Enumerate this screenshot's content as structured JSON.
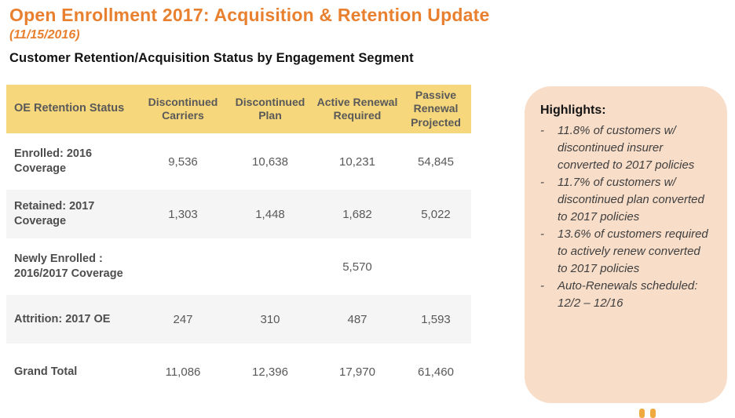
{
  "slide": {
    "title": "Open Enrollment 2017: Acquisition & Retention Update",
    "date": "(11/15/2016)",
    "section_heading": "Customer Retention/Acquisition Status by Engagement Segment"
  },
  "table": {
    "columns": [
      "OE Retention Status",
      "Discontinued Carriers",
      "Discontinued Plan",
      "Active Renewal Required",
      "Passive Renewal Projected"
    ],
    "rows": [
      {
        "label": "Enrolled: 2016 Coverage",
        "values": [
          "9,536",
          "10,638",
          "10,231",
          "54,845"
        ]
      },
      {
        "label": "Retained: 2017 Coverage",
        "values": [
          "1,303",
          "1,448",
          "1,682",
          "5,022"
        ]
      },
      {
        "label": "Newly Enrolled : 2016/2017 Coverage",
        "values": [
          "",
          "",
          "5,570",
          ""
        ]
      },
      {
        "label": "Attrition: 2017 OE",
        "values": [
          "247",
          "310",
          "487",
          "1,593"
        ]
      },
      {
        "label": "Grand Total",
        "values": [
          "11,086",
          "12,396",
          "17,970",
          "61,460"
        ]
      }
    ]
  },
  "highlights": {
    "heading": "Highlights:",
    "bullet_char": "-",
    "items": [
      "11.8% of customers w/ discontinued insurer converted to 2017 policies",
      "11.7% of customers w/ discontinued plan converted to 2017 policies",
      "13.6% of customers required to actively renew converted to 2017 policies",
      "Auto-Renewals scheduled: 12/2 – 12/16"
    ]
  },
  "colors": {
    "accent_orange": "#e8802f",
    "table_header_bg": "#f6d77b",
    "table_header_text": "#595959",
    "row_stripe_bg": "#f5f5f5",
    "highlights_bg": "#f8ddc9",
    "logo_dot_orange": "#efa93f"
  }
}
